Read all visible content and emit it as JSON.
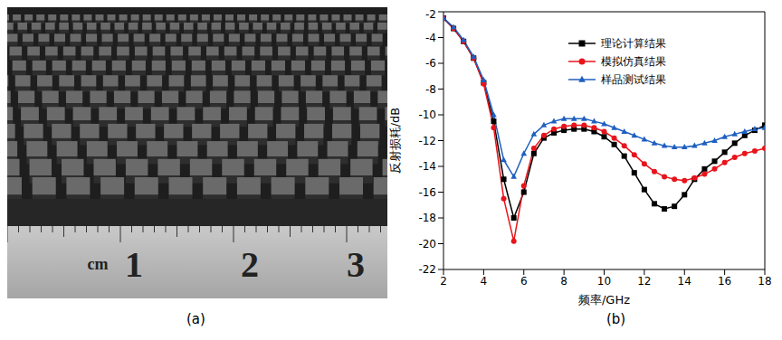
{
  "figure": {
    "captions": [
      "(a)",
      "(b)"
    ],
    "photo": {
      "ruler_labels": [
        "cm",
        "1",
        "2",
        "3"
      ]
    }
  },
  "chart_data": {
    "type": "line",
    "x_label": "频率/GHz",
    "y_label": "反射损耗/dB",
    "x": [
      2,
      2.5,
      3,
      3.5,
      4,
      4.5,
      5,
      5.5,
      6,
      6.5,
      7,
      7.5,
      8,
      8.5,
      9,
      9.5,
      10,
      10.5,
      11,
      11.5,
      12,
      12.5,
      13,
      13.5,
      14,
      14.5,
      15,
      15.5,
      16,
      16.5,
      17,
      17.5,
      18
    ],
    "xlim": [
      2,
      18
    ],
    "xticks": [
      2,
      4,
      6,
      8,
      10,
      12,
      14,
      16,
      18
    ],
    "ylim": [
      -22,
      -2
    ],
    "yticks": [
      -22,
      -20,
      -18,
      -16,
      -14,
      -12,
      -10,
      -8,
      -6,
      -4,
      -2
    ],
    "grid": false,
    "legend": "upper right",
    "series": [
      {
        "name": "理论计算结果",
        "color": "#000000",
        "marker": "square",
        "values": [
          -2.5,
          -3.3,
          -4.3,
          -5.6,
          -7.5,
          -10.5,
          -15,
          -18,
          -16,
          -13,
          -11.8,
          -11.4,
          -11.2,
          -11.1,
          -11.1,
          -11.3,
          -11.7,
          -12.3,
          -13.2,
          -14.5,
          -15.8,
          -16.9,
          -17.3,
          -17.1,
          -16.2,
          -15,
          -14.2,
          -13.6,
          -12.9,
          -12.2,
          -11.6,
          -11.2,
          -10.8
        ]
      },
      {
        "name": "模拟仿真结果",
        "color": "#e8141b",
        "marker": "circle",
        "values": [
          -2.5,
          -3.3,
          -4.3,
          -5.6,
          -7.6,
          -11,
          -16.5,
          -19.8,
          -15.5,
          -12.6,
          -11.6,
          -11.1,
          -10.9,
          -10.8,
          -10.8,
          -11,
          -11.3,
          -11.8,
          -12.4,
          -13.1,
          -13.8,
          -14.4,
          -14.8,
          -15,
          -15.1,
          -14.9,
          -14.6,
          -14.2,
          -13.7,
          -13.3,
          -13,
          -12.8,
          -12.6
        ]
      },
      {
        "name": "样品测试结果",
        "color": "#1f5fbf",
        "marker": "triangle",
        "values": [
          -2.5,
          -3.2,
          -4.2,
          -5.5,
          -7.3,
          -10,
          -13.5,
          -14.8,
          -13,
          -11.5,
          -10.8,
          -10.5,
          -10.3,
          -10.3,
          -10.3,
          -10.5,
          -10.7,
          -11,
          -11.3,
          -11.6,
          -11.9,
          -12.2,
          -12.4,
          -12.5,
          -12.5,
          -12.4,
          -12.2,
          -12,
          -11.7,
          -11.5,
          -11.3,
          -11.1,
          -11
        ]
      }
    ]
  }
}
